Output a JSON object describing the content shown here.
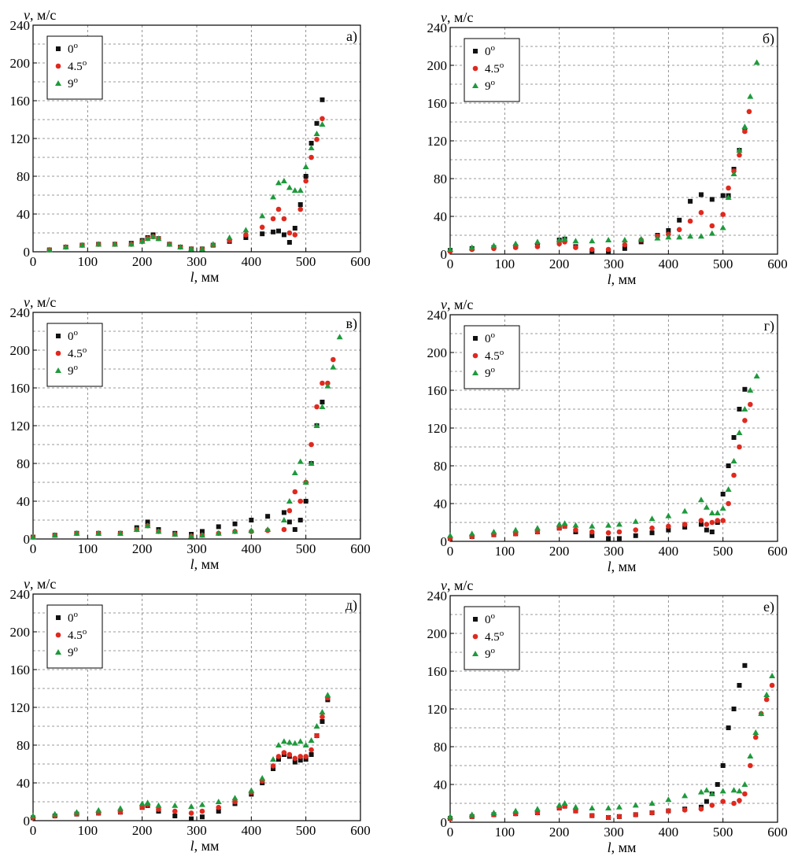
{
  "colors": {
    "0deg": "#111111",
    "4.5deg": "#e0291e",
    "9deg": "#1e9a3c"
  },
  "axis": {
    "x_ticks": [
      "0",
      "100",
      "200",
      "300",
      "400",
      "500",
      "600"
    ],
    "y_ticks": [
      "0",
      "40",
      "80",
      "120",
      "160",
      "200",
      "240"
    ]
  },
  "chart_data": [
    {
      "type": "scatter",
      "panel": "а)",
      "ylabel_var": "v",
      "ylabel_unit": ", м/с",
      "xlabel_var": "l",
      "xlabel_unit": ", мм",
      "xlim": [
        0,
        600
      ],
      "ylim": [
        0,
        240
      ],
      "grid": true,
      "legend": "top-left",
      "series": [
        {
          "name": "0o",
          "marker": "square",
          "x": [
            30,
            60,
            90,
            120,
            150,
            180,
            200,
            210,
            220,
            230,
            250,
            270,
            290,
            310,
            330,
            360,
            390,
            420,
            440,
            450,
            460,
            470,
            480,
            490,
            500,
            510,
            520,
            530
          ],
          "y": [
            2,
            5,
            7,
            8,
            8,
            9,
            12,
            15,
            18,
            14,
            8,
            5,
            3,
            3,
            7,
            11,
            15,
            19,
            21,
            22,
            18,
            10,
            25,
            50,
            80,
            115,
            136,
            161
          ]
        },
        {
          "name": "4.5o",
          "marker": "circle",
          "x": [
            30,
            60,
            90,
            120,
            150,
            180,
            200,
            210,
            220,
            230,
            250,
            270,
            290,
            310,
            330,
            360,
            390,
            420,
            440,
            450,
            460,
            470,
            480,
            490,
            500,
            510,
            520,
            530
          ],
          "y": [
            2,
            5,
            7,
            8,
            8,
            8,
            11,
            14,
            16,
            14,
            8,
            5,
            3,
            3,
            7,
            12,
            18,
            26,
            35,
            45,
            35,
            20,
            18,
            45,
            75,
            100,
            119,
            141
          ]
        },
        {
          "name": "9o",
          "marker": "triangle",
          "x": [
            30,
            60,
            90,
            120,
            150,
            180,
            200,
            210,
            220,
            230,
            250,
            270,
            290,
            310,
            330,
            360,
            390,
            420,
            440,
            450,
            460,
            470,
            480,
            490,
            500,
            510,
            520,
            530
          ],
          "y": [
            2,
            5,
            7,
            8,
            8,
            8,
            11,
            14,
            16,
            14,
            8,
            5,
            3,
            3,
            8,
            15,
            23,
            38,
            58,
            73,
            75,
            68,
            65,
            65,
            90,
            110,
            125,
            135
          ]
        }
      ]
    },
    {
      "type": "scatter",
      "panel": "б)",
      "ylabel_var": "v",
      "ylabel_unit": ", м/с",
      "xlabel_var": "l",
      "xlabel_unit": ", мм",
      "xlim": [
        0,
        600
      ],
      "ylim": [
        0,
        240
      ],
      "grid": true,
      "legend": "top-left",
      "series": [
        {
          "name": "0o",
          "marker": "square",
          "x": [
            0,
            40,
            80,
            120,
            160,
            200,
            210,
            230,
            260,
            290,
            320,
            350,
            380,
            400,
            420,
            440,
            460,
            480,
            500,
            510,
            520,
            530,
            540
          ],
          "y": [
            4,
            6,
            7,
            8,
            9,
            15,
            16,
            8,
            3,
            2,
            6,
            13,
            20,
            25,
            36,
            56,
            63,
            58,
            62,
            62,
            90,
            110,
            131
          ]
        },
        {
          "name": "4.5o",
          "marker": "circle",
          "x": [
            0,
            40,
            80,
            120,
            160,
            200,
            210,
            230,
            260,
            290,
            320,
            350,
            380,
            400,
            420,
            440,
            460,
            480,
            500,
            510,
            520,
            530,
            540,
            548
          ],
          "y": [
            3,
            5,
            6,
            7,
            8,
            11,
            13,
            7,
            5,
            5,
            10,
            15,
            19,
            21,
            26,
            35,
            44,
            30,
            42,
            70,
            88,
            105,
            130,
            151
          ]
        },
        {
          "name": "9o",
          "marker": "triangle",
          "x": [
            0,
            40,
            80,
            120,
            160,
            200,
            210,
            230,
            260,
            290,
            320,
            350,
            380,
            400,
            420,
            440,
            460,
            480,
            500,
            510,
            520,
            530,
            540,
            550,
            562
          ],
          "y": [
            5,
            7,
            9,
            11,
            13,
            15,
            16,
            14,
            14,
            15,
            15,
            16,
            17,
            18,
            18,
            19,
            19,
            22,
            28,
            60,
            85,
            110,
            135,
            167,
            203
          ]
        }
      ]
    },
    {
      "type": "scatter",
      "panel": "в)",
      "ylabel_var": "v",
      "ylabel_unit": ", м/с",
      "xlabel_var": "l",
      "xlabel_unit": ", мм",
      "xlim": [
        0,
        600
      ],
      "ylim": [
        0,
        240
      ],
      "grid": true,
      "legend": "top-left",
      "series": [
        {
          "name": "0o",
          "marker": "square",
          "x": [
            0,
            40,
            80,
            120,
            160,
            190,
            210,
            230,
            260,
            290,
            310,
            340,
            370,
            400,
            430,
            460,
            470,
            480,
            490,
            500,
            510,
            520,
            530
          ],
          "y": [
            2,
            4,
            6,
            6,
            6,
            12,
            18,
            10,
            6,
            5,
            8,
            13,
            16,
            20,
            24,
            28,
            18,
            10,
            20,
            40,
            80,
            120,
            145
          ]
        },
        {
          "name": "4.5o",
          "marker": "circle",
          "x": [
            0,
            40,
            80,
            120,
            160,
            190,
            210,
            230,
            260,
            290,
            310,
            340,
            370,
            400,
            430,
            460,
            470,
            480,
            490,
            500,
            510,
            520,
            530,
            540,
            550
          ],
          "y": [
            2,
            4,
            6,
            6,
            6,
            10,
            14,
            8,
            5,
            3,
            4,
            6,
            8,
            8,
            9,
            10,
            30,
            50,
            40,
            60,
            100,
            140,
            165,
            165,
            190
          ]
        },
        {
          "name": "9o",
          "marker": "triangle",
          "x": [
            0,
            40,
            80,
            120,
            160,
            190,
            210,
            230,
            260,
            290,
            310,
            340,
            370,
            400,
            430,
            460,
            470,
            480,
            490,
            500,
            510,
            520,
            530,
            540,
            550,
            562
          ],
          "y": [
            2,
            4,
            6,
            6,
            6,
            10,
            14,
            8,
            5,
            3,
            4,
            6,
            8,
            9,
            10,
            20,
            40,
            70,
            82,
            60,
            80,
            120,
            140,
            162,
            182,
            214
          ]
        }
      ]
    },
    {
      "type": "scatter",
      "panel": "г)",
      "ylabel_var": "v",
      "ylabel_unit": ", м/с",
      "xlabel_var": "l",
      "xlabel_unit": ", мм",
      "xlim": [
        0,
        600
      ],
      "ylim": [
        0,
        240
      ],
      "grid": true,
      "legend": "top-left",
      "series": [
        {
          "name": "0o",
          "marker": "square",
          "x": [
            0,
            40,
            80,
            120,
            160,
            200,
            210,
            230,
            260,
            290,
            310,
            340,
            370,
            400,
            430,
            460,
            470,
            480,
            490,
            500,
            510,
            520,
            530,
            540
          ],
          "y": [
            3,
            5,
            7,
            8,
            10,
            14,
            16,
            10,
            6,
            3,
            3,
            6,
            9,
            12,
            15,
            18,
            12,
            10,
            20,
            50,
            80,
            110,
            140,
            161
          ]
        },
        {
          "name": "4.5o",
          "marker": "circle",
          "x": [
            0,
            40,
            80,
            120,
            160,
            200,
            210,
            230,
            260,
            290,
            310,
            340,
            370,
            400,
            430,
            460,
            470,
            480,
            490,
            500,
            510,
            520,
            530,
            540,
            550
          ],
          "y": [
            3,
            5,
            7,
            8,
            10,
            14,
            16,
            12,
            10,
            9,
            10,
            12,
            14,
            16,
            18,
            22,
            18,
            20,
            22,
            22,
            40,
            70,
            100,
            128,
            145
          ]
        },
        {
          "name": "9o",
          "marker": "triangle",
          "x": [
            0,
            40,
            80,
            120,
            160,
            200,
            210,
            230,
            260,
            290,
            310,
            340,
            370,
            400,
            430,
            460,
            470,
            480,
            490,
            500,
            510,
            520,
            530,
            540,
            550,
            562
          ],
          "y": [
            6,
            8,
            10,
            12,
            14,
            18,
            19,
            17,
            16,
            17,
            18,
            21,
            24,
            27,
            32,
            44,
            36,
            30,
            30,
            35,
            55,
            85,
            115,
            140,
            160,
            175
          ]
        }
      ]
    },
    {
      "type": "scatter",
      "panel": "д)",
      "ylabel_var": "v",
      "ylabel_unit": ", м/с",
      "xlabel_var": "l",
      "xlabel_unit": ", мм",
      "xlim": [
        0,
        600
      ],
      "ylim": [
        0,
        240
      ],
      "grid": true,
      "legend": "top-left",
      "series": [
        {
          "name": "0o",
          "marker": "square",
          "x": [
            0,
            40,
            80,
            120,
            160,
            200,
            210,
            230,
            260,
            290,
            310,
            340,
            370,
            400,
            420,
            440,
            450,
            460,
            470,
            480,
            490,
            500,
            510,
            520,
            530,
            540
          ],
          "y": [
            3,
            5,
            7,
            8,
            9,
            14,
            16,
            10,
            5,
            2,
            4,
            10,
            18,
            28,
            40,
            55,
            65,
            70,
            68,
            62,
            64,
            65,
            70,
            90,
            105,
            128
          ]
        },
        {
          "name": "4.5o",
          "marker": "circle",
          "x": [
            0,
            40,
            80,
            120,
            160,
            200,
            210,
            230,
            260,
            290,
            310,
            340,
            370,
            400,
            420,
            440,
            450,
            460,
            470,
            480,
            490,
            500,
            510,
            520,
            530,
            540
          ],
          "y": [
            3,
            5,
            7,
            8,
            9,
            14,
            17,
            12,
            10,
            8,
            10,
            14,
            20,
            30,
            42,
            58,
            68,
            72,
            70,
            66,
            68,
            68,
            75,
            90,
            110,
            130
          ]
        },
        {
          "name": "9o",
          "marker": "triangle",
          "x": [
            0,
            40,
            80,
            120,
            160,
            200,
            210,
            230,
            260,
            290,
            310,
            340,
            370,
            400,
            420,
            440,
            450,
            460,
            470,
            480,
            490,
            500,
            510,
            520,
            530,
            540
          ],
          "y": [
            5,
            7,
            9,
            11,
            13,
            18,
            19,
            16,
            16,
            15,
            17,
            20,
            24,
            32,
            45,
            65,
            80,
            84,
            83,
            82,
            84,
            80,
            85,
            100,
            115,
            133
          ]
        }
      ]
    },
    {
      "type": "scatter",
      "panel": "е)",
      "ylabel_var": "v",
      "ylabel_unit": ", м/с",
      "xlabel_var": "l",
      "xlabel_unit": ", мм",
      "xlim": [
        0,
        600
      ],
      "ylim": [
        0,
        240
      ],
      "grid": true,
      "legend": "top-left",
      "series": [
        {
          "name": "0o",
          "marker": "square",
          "x": [
            0,
            40,
            80,
            120,
            160,
            200,
            210,
            230,
            260,
            290,
            310,
            340,
            370,
            400,
            430,
            460,
            470,
            480,
            490,
            500,
            510,
            520,
            530,
            540
          ],
          "y": [
            4,
            6,
            8,
            9,
            10,
            15,
            17,
            12,
            7,
            5,
            6,
            8,
            10,
            12,
            14,
            16,
            22,
            30,
            40,
            60,
            100,
            120,
            145,
            166
          ]
        },
        {
          "name": "4.5o",
          "marker": "circle",
          "x": [
            0,
            40,
            80,
            120,
            160,
            200,
            210,
            230,
            260,
            290,
            310,
            340,
            370,
            400,
            430,
            460,
            480,
            500,
            520,
            530,
            540,
            550,
            560,
            570,
            580,
            590
          ],
          "y": [
            4,
            6,
            8,
            9,
            10,
            15,
            17,
            12,
            7,
            5,
            6,
            8,
            10,
            12,
            13,
            14,
            18,
            22,
            20,
            23,
            30,
            60,
            90,
            115,
            130,
            145
          ]
        },
        {
          "name": "9o",
          "marker": "triangle",
          "x": [
            0,
            40,
            80,
            120,
            160,
            200,
            210,
            230,
            260,
            290,
            310,
            340,
            370,
            400,
            430,
            460,
            470,
            480,
            500,
            520,
            530,
            540,
            550,
            560,
            570,
            580,
            590
          ],
          "y": [
            6,
            8,
            10,
            12,
            14,
            18,
            20,
            16,
            15,
            15,
            16,
            18,
            20,
            24,
            28,
            32,
            34,
            30,
            33,
            34,
            33,
            40,
            70,
            95,
            115,
            135,
            155
          ]
        }
      ]
    }
  ]
}
